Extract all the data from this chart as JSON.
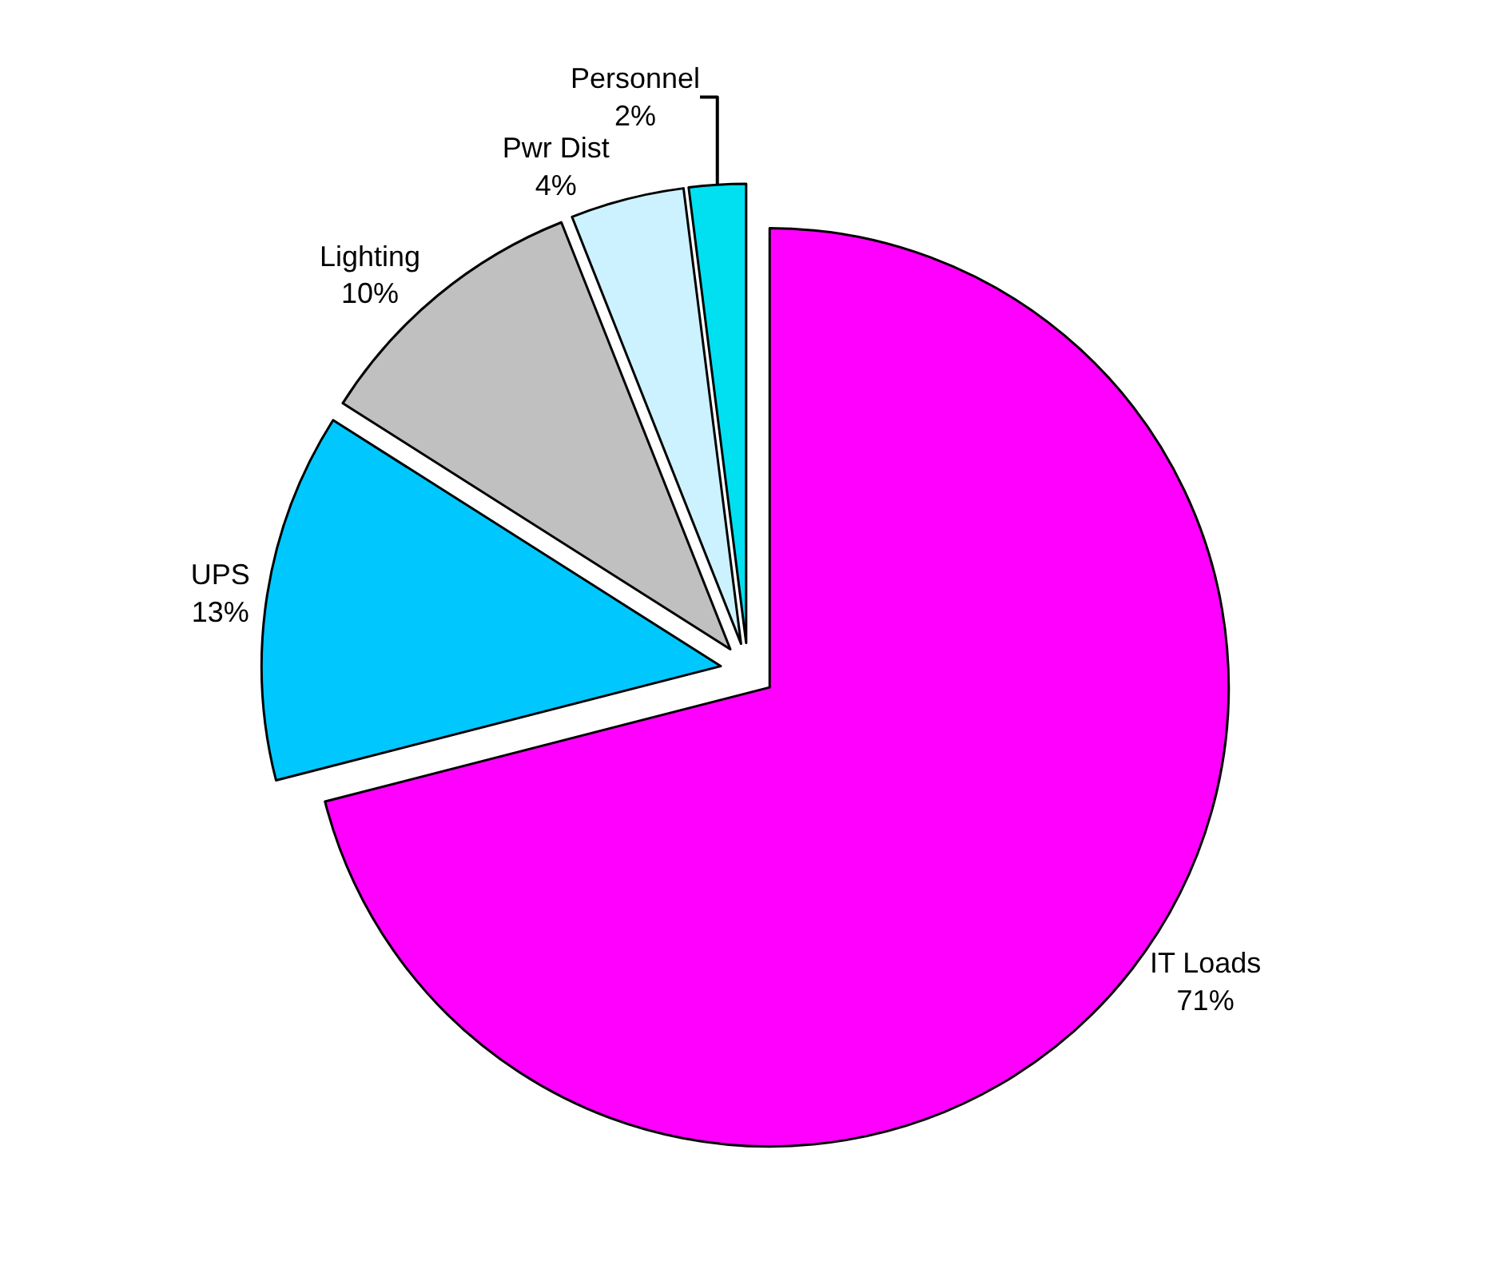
{
  "chart_data": {
    "type": "pie",
    "categories": [
      "IT Loads",
      "UPS",
      "Lighting",
      "Pwr Dist",
      "Personnel"
    ],
    "values": [
      71,
      13,
      10,
      4,
      2
    ],
    "value_labels": [
      "71%",
      "13%",
      "10%",
      "4%",
      "2%"
    ],
    "colors": [
      "#ff00ff",
      "#00c8ff",
      "#c0c0c0",
      "#ccf2ff",
      "#00e0f0"
    ],
    "legend": false
  }
}
